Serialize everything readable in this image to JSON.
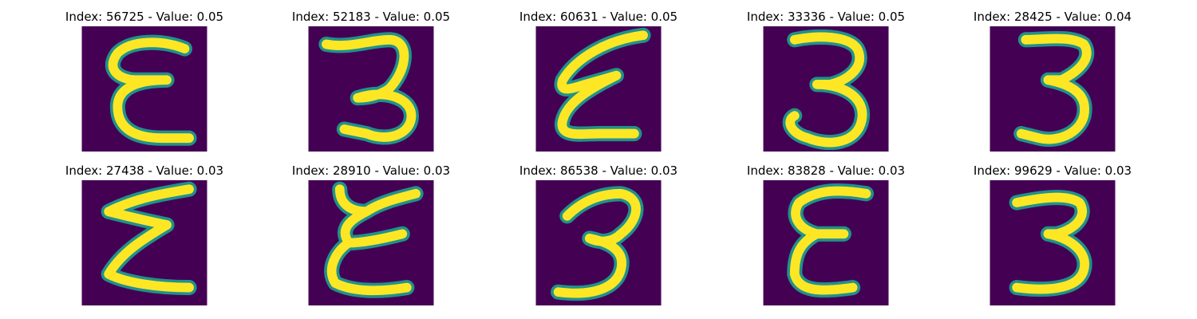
{
  "colors": {
    "background": "#440154",
    "stroke_mid": "#21918c",
    "stroke_core": "#fde725"
  },
  "grid": {
    "rows": 2,
    "columns": 5
  },
  "images": [
    {
      "title": "Index: 56725 - Value: 0.05",
      "glyph": "epsilon"
    },
    {
      "title": "Index: 52183 - Value: 0.05",
      "glyph": "three"
    },
    {
      "title": "Index: 60631 - Value: 0.05",
      "glyph": "epsilon-slanted"
    },
    {
      "title": "Index: 33336 - Value: 0.05",
      "glyph": "three"
    },
    {
      "title": "Index: 28425 - Value: 0.04",
      "glyph": "three"
    },
    {
      "title": "Index: 27438 - Value: 0.03",
      "glyph": "sigma"
    },
    {
      "title": "Index: 28910 - Value: 0.03",
      "glyph": "epsilon"
    },
    {
      "title": "Index: 86538 - Value: 0.03",
      "glyph": "three"
    },
    {
      "title": "Index: 83828 - Value: 0.03",
      "glyph": "epsilon"
    },
    {
      "title": "Index: 99629 - Value: 0.03",
      "glyph": "three"
    }
  ]
}
